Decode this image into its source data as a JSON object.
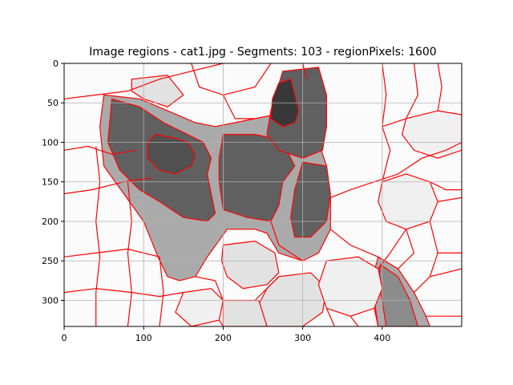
{
  "chart_data": {
    "type": "heatmap",
    "title": "Image regions - cat1.jpg - Segments: 103 - regionPixels: 1600",
    "xlabel": "",
    "ylabel": "",
    "xlim": [
      0,
      500
    ],
    "ylim": [
      333,
      0
    ],
    "x_ticks": [
      0,
      100,
      200,
      300,
      400
    ],
    "y_ticks": [
      0,
      50,
      100,
      150,
      200,
      250,
      300
    ],
    "grid": true,
    "legend": "none",
    "boundary_color": "#ff0000",
    "gray_levels": [
      "#fafafa",
      "#f0f0f0",
      "#e2e2e2",
      "#c8c8c8",
      "#aaaaaa",
      "#8c8c8c",
      "#606060",
      "#505050",
      "#383838"
    ],
    "regions": [
      {
        "shade": 4,
        "pts": [
          [
            50,
            40
          ],
          [
            95,
            45
          ],
          [
            130,
            60
          ],
          [
            165,
            75
          ],
          [
            190,
            80
          ],
          [
            215,
            75
          ],
          [
            240,
            70
          ],
          [
            265,
            65
          ],
          [
            290,
            70
          ],
          [
            310,
            75
          ],
          [
            320,
            100
          ],
          [
            330,
            130
          ],
          [
            335,
            170
          ],
          [
            335,
            210
          ],
          [
            320,
            240
          ],
          [
            300,
            250
          ],
          [
            270,
            240
          ],
          [
            255,
            215
          ],
          [
            240,
            210
          ],
          [
            205,
            210
          ],
          [
            180,
            245
          ],
          [
            165,
            270
          ],
          [
            145,
            275
          ],
          [
            130,
            270
          ],
          [
            118,
            245
          ],
          [
            100,
            200
          ],
          [
            75,
            165
          ],
          [
            50,
            130
          ],
          [
            45,
            80
          ]
        ]
      },
      {
        "shade": 4,
        "pts": [
          [
            395,
            245
          ],
          [
            420,
            260
          ],
          [
            440,
            290
          ],
          [
            455,
            320
          ],
          [
            460,
            333
          ],
          [
            395,
            333
          ],
          [
            390,
            300
          ],
          [
            388,
            270
          ]
        ]
      },
      {
        "shade": 5,
        "pts": [
          [
            398,
            255
          ],
          [
            420,
            270
          ],
          [
            435,
            300
          ],
          [
            445,
            333
          ],
          [
            405,
            333
          ],
          [
            400,
            300
          ],
          [
            395,
            275
          ]
        ]
      },
      {
        "shade": 6,
        "pts": [
          [
            60,
            45
          ],
          [
            95,
            55
          ],
          [
            125,
            75
          ],
          [
            155,
            90
          ],
          [
            175,
            100
          ],
          [
            185,
            120
          ],
          [
            180,
            140
          ],
          [
            185,
            165
          ],
          [
            190,
            190
          ],
          [
            180,
            200
          ],
          [
            150,
            195
          ],
          [
            120,
            175
          ],
          [
            95,
            160
          ],
          [
            70,
            135
          ],
          [
            55,
            100
          ]
        ]
      },
      {
        "shade": 6,
        "pts": [
          [
            200,
            90
          ],
          [
            240,
            90
          ],
          [
            265,
            95
          ],
          [
            280,
            110
          ],
          [
            290,
            130
          ],
          [
            275,
            150
          ],
          [
            270,
            180
          ],
          [
            260,
            200
          ],
          [
            230,
            195
          ],
          [
            200,
            185
          ],
          [
            195,
            150
          ],
          [
            195,
            120
          ]
        ]
      },
      {
        "shade": 6,
        "pts": [
          [
            275,
            10
          ],
          [
            320,
            5
          ],
          [
            330,
            40
          ],
          [
            330,
            80
          ],
          [
            325,
            110
          ],
          [
            300,
            120
          ],
          [
            270,
            110
          ],
          [
            255,
            90
          ],
          [
            260,
            60
          ]
        ]
      },
      {
        "shade": 6,
        "pts": [
          [
            300,
            125
          ],
          [
            330,
            130
          ],
          [
            335,
            165
          ],
          [
            330,
            200
          ],
          [
            310,
            220
          ],
          [
            290,
            220
          ],
          [
            285,
            195
          ],
          [
            290,
            160
          ]
        ]
      },
      {
        "shade": 7,
        "pts": [
          [
            115,
            90
          ],
          [
            140,
            95
          ],
          [
            155,
            100
          ],
          [
            165,
            115
          ],
          [
            160,
            130
          ],
          [
            140,
            140
          ],
          [
            120,
            135
          ],
          [
            105,
            120
          ],
          [
            105,
            100
          ]
        ]
      },
      {
        "shade": 8,
        "pts": [
          [
            270,
            25
          ],
          [
            285,
            20
          ],
          [
            290,
            40
          ],
          [
            295,
            60
          ],
          [
            290,
            75
          ],
          [
            275,
            80
          ],
          [
            260,
            70
          ],
          [
            262,
            45
          ]
        ]
      },
      {
        "shade": 2,
        "pts": [
          [
            200,
            230
          ],
          [
            240,
            225
          ],
          [
            265,
            240
          ],
          [
            270,
            265
          ],
          [
            255,
            280
          ],
          [
            225,
            285
          ],
          [
            205,
            270
          ],
          [
            198,
            250
          ]
        ]
      },
      {
        "shade": 2,
        "pts": [
          [
            270,
            270
          ],
          [
            310,
            265
          ],
          [
            330,
            285
          ],
          [
            325,
            315
          ],
          [
            300,
            333
          ],
          [
            255,
            333
          ],
          [
            245,
            305
          ],
          [
            255,
            285
          ]
        ]
      },
      {
        "shade": 2,
        "pts": [
          [
            85,
            20
          ],
          [
            130,
            15
          ],
          [
            150,
            40
          ],
          [
            130,
            55
          ],
          [
            100,
            45
          ],
          [
            85,
            35
          ]
        ]
      },
      {
        "shade": 2,
        "pts": [
          [
            200,
            300
          ],
          [
            245,
            300
          ],
          [
            255,
            333
          ],
          [
            200,
            333
          ]
        ]
      },
      {
        "shade": 1,
        "pts": [
          [
            330,
            250
          ],
          [
            370,
            245
          ],
          [
            395,
            260
          ],
          [
            400,
            285
          ],
          [
            390,
            310
          ],
          [
            360,
            320
          ],
          [
            330,
            310
          ],
          [
            320,
            280
          ]
        ]
      },
      {
        "shade": 1,
        "pts": [
          [
            400,
            150
          ],
          [
            430,
            140
          ],
          [
            460,
            150
          ],
          [
            470,
            175
          ],
          [
            460,
            200
          ],
          [
            430,
            210
          ],
          [
            405,
            200
          ],
          [
            395,
            175
          ]
        ]
      },
      {
        "shade": 1,
        "pts": [
          [
            150,
            290
          ],
          [
            185,
            285
          ],
          [
            200,
            300
          ],
          [
            195,
            325
          ],
          [
            160,
            333
          ],
          [
            140,
            315
          ]
        ]
      },
      {
        "shade": 1,
        "pts": [
          [
            430,
            70
          ],
          [
            470,
            60
          ],
          [
            500,
            65
          ],
          [
            500,
            110
          ],
          [
            470,
            120
          ],
          [
            440,
            110
          ],
          [
            425,
            90
          ]
        ]
      }
    ],
    "edges": [
      [
        [
          0,
          45
        ],
        [
          40,
          40
        ],
        [
          80,
          35
        ],
        [
          120,
          20
        ],
        [
          160,
          10
        ],
        [
          200,
          0
        ]
      ],
      [
        [
          0,
          110
        ],
        [
          30,
          105
        ],
        [
          60,
          115
        ],
        [
          90,
          110
        ]
      ],
      [
        [
          0,
          165
        ],
        [
          35,
          160
        ],
        [
          75,
          150
        ],
        [
          110,
          145
        ]
      ],
      [
        [
          0,
          245
        ],
        [
          40,
          240
        ],
        [
          80,
          235
        ],
        [
          120,
          245
        ]
      ],
      [
        [
          0,
          290
        ],
        [
          40,
          285
        ],
        [
          85,
          290
        ],
        [
          120,
          295
        ],
        [
          150,
          290
        ]
      ],
      [
        [
          40,
          105
        ],
        [
          45,
          150
        ],
        [
          40,
          200
        ],
        [
          45,
          245
        ],
        [
          40,
          290
        ],
        [
          40,
          333
        ]
      ],
      [
        [
          80,
          150
        ],
        [
          85,
          200
        ],
        [
          80,
          240
        ],
        [
          85,
          290
        ],
        [
          80,
          333
        ]
      ],
      [
        [
          120,
          245
        ],
        [
          125,
          290
        ],
        [
          120,
          333
        ]
      ],
      [
        [
          160,
          0
        ],
        [
          170,
          30
        ],
        [
          200,
          40
        ],
        [
          240,
          30
        ],
        [
          260,
          0
        ]
      ],
      [
        [
          200,
          40
        ],
        [
          215,
          70
        ],
        [
          240,
          70
        ]
      ],
      [
        [
          335,
          170
        ],
        [
          360,
          160
        ],
        [
          390,
          150
        ],
        [
          420,
          140
        ],
        [
          450,
          120
        ],
        [
          480,
          110
        ],
        [
          500,
          100
        ]
      ],
      [
        [
          400,
          0
        ],
        [
          405,
          40
        ],
        [
          400,
          80
        ],
        [
          410,
          110
        ],
        [
          400,
          150
        ]
      ],
      [
        [
          440,
          0
        ],
        [
          445,
          40
        ],
        [
          430,
          70
        ]
      ],
      [
        [
          470,
          0
        ],
        [
          475,
          30
        ],
        [
          470,
          60
        ]
      ],
      [
        [
          400,
          80
        ],
        [
          430,
          70
        ]
      ],
      [
        [
          460,
          150
        ],
        [
          480,
          160
        ],
        [
          500,
          160
        ]
      ],
      [
        [
          470,
          175
        ],
        [
          500,
          170
        ]
      ],
      [
        [
          460,
          200
        ],
        [
          470,
          240
        ],
        [
          460,
          270
        ],
        [
          440,
          290
        ]
      ],
      [
        [
          430,
          210
        ],
        [
          440,
          240
        ],
        [
          420,
          260
        ]
      ],
      [
        [
          470,
          240
        ],
        [
          500,
          240
        ]
      ],
      [
        [
          460,
          270
        ],
        [
          500,
          260
        ]
      ],
      [
        [
          455,
          320
        ],
        [
          500,
          320
        ]
      ],
      [
        [
          395,
          260
        ],
        [
          410,
          240
        ],
        [
          430,
          210
        ]
      ],
      [
        [
          335,
          210
        ],
        [
          360,
          230
        ],
        [
          395,
          245
        ]
      ],
      [
        [
          260,
          200
        ],
        [
          270,
          230
        ],
        [
          300,
          250
        ]
      ],
      [
        [
          165,
          270
        ],
        [
          190,
          275
        ],
        [
          200,
          300
        ]
      ],
      [
        [
          195,
          325
        ],
        [
          200,
          333
        ]
      ],
      [
        [
          240,
          300
        ],
        [
          270,
          270
        ]
      ],
      [
        [
          330,
          310
        ],
        [
          340,
          333
        ]
      ],
      [
        [
          360,
          320
        ],
        [
          370,
          333
        ]
      ],
      [
        [
          390,
          310
        ],
        [
          395,
          333
        ]
      ],
      [
        [
          300,
          0
        ],
        [
          305,
          20
        ]
      ]
    ]
  }
}
